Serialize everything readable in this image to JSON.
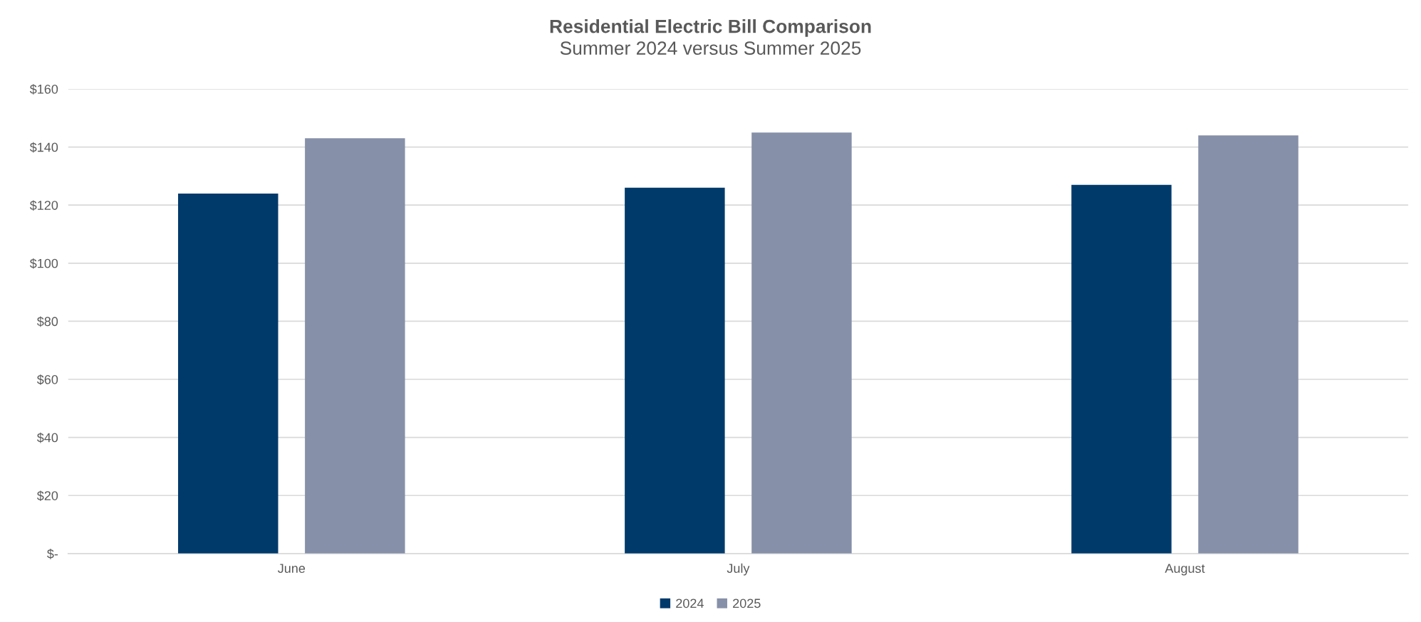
{
  "chart_data": {
    "type": "bar",
    "title": "Residential Electric Bill Comparison",
    "subtitle": "Summer 2024 versus Summer 2025",
    "categories": [
      "June",
      "July",
      "August"
    ],
    "series": [
      {
        "name": "2024",
        "color": "#003a6b",
        "values": [
          124,
          126,
          127
        ]
      },
      {
        "name": "2025",
        "color": "#8690a8",
        "values": [
          143,
          145,
          144
        ]
      }
    ],
    "ylim": [
      0,
      160
    ],
    "yticks": [
      {
        "value": 0,
        "label": "$-"
      },
      {
        "value": 20,
        "label": "$20"
      },
      {
        "value": 40,
        "label": "$40"
      },
      {
        "value": 60,
        "label": "$60"
      },
      {
        "value": 80,
        "label": "$80"
      },
      {
        "value": 100,
        "label": "$100"
      },
      {
        "value": 120,
        "label": "$120"
      },
      {
        "value": 140,
        "label": "$140"
      },
      {
        "value": 160,
        "label": "$160"
      }
    ],
    "grid": "y",
    "legend": "bottom"
  }
}
